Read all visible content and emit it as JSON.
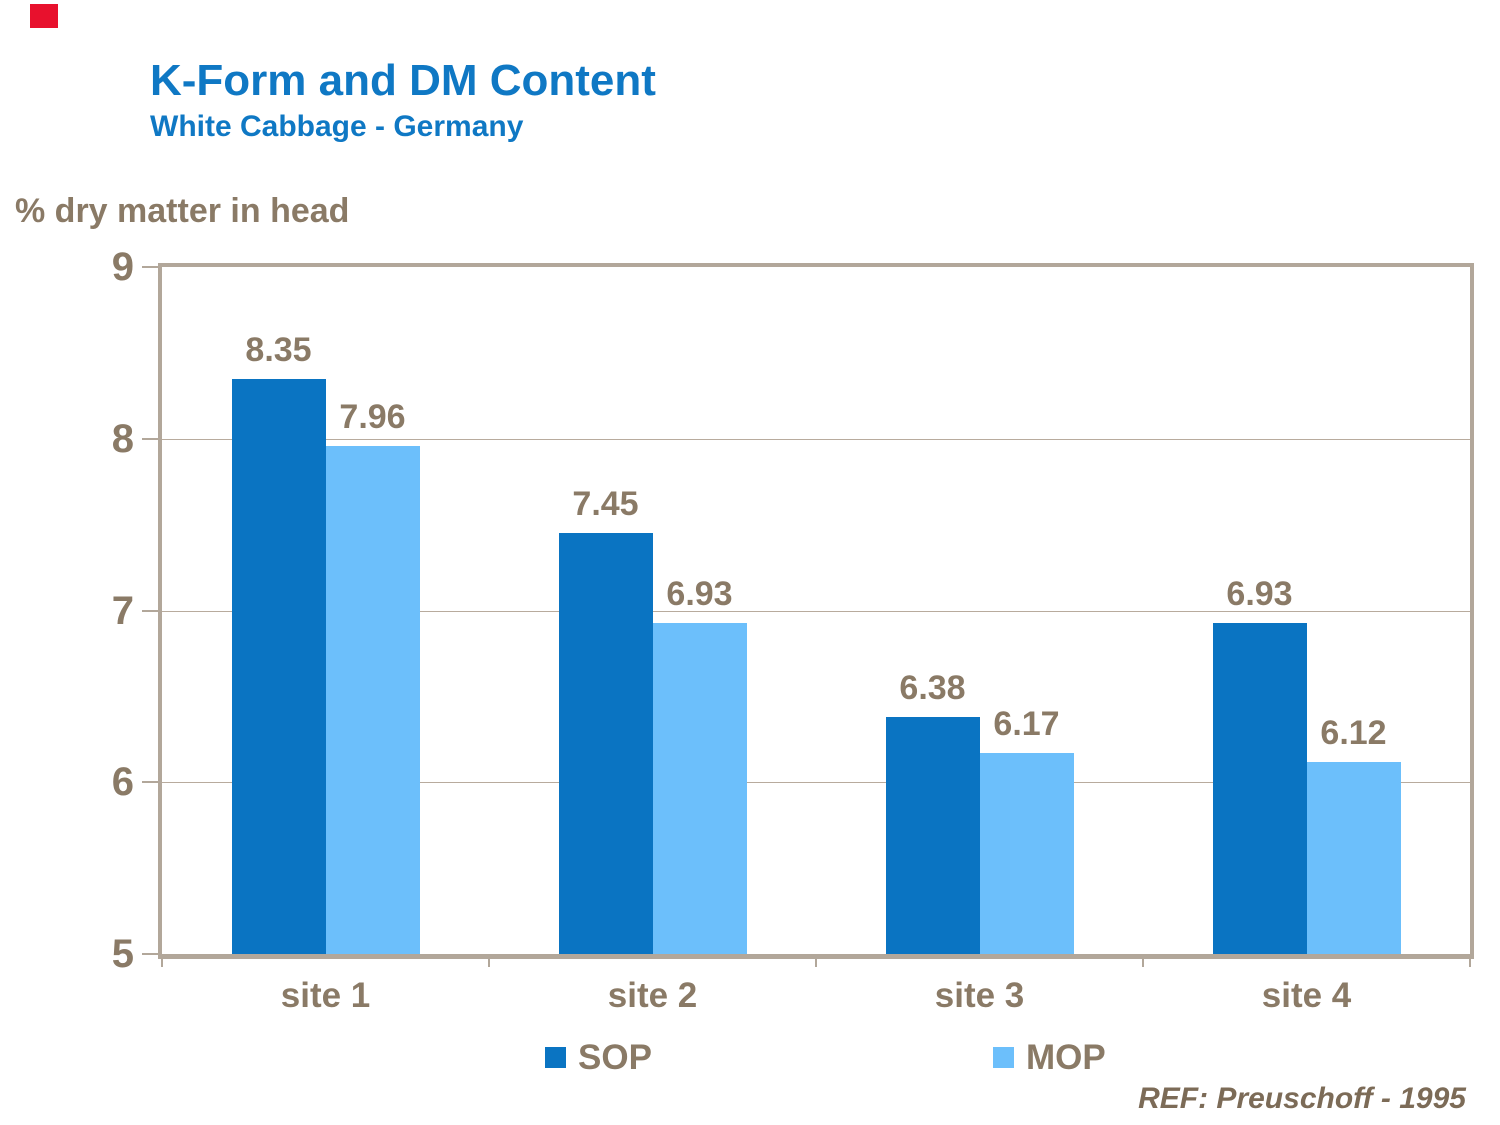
{
  "header": {
    "title": "K-Form and DM Content",
    "subtitle": "White Cabbage - Germany"
  },
  "footer": {
    "ref": "REF: Preuschoff - 1995"
  },
  "colors": {
    "title_blue": "#0f78c4",
    "sop": "#0a74c2",
    "mop": "#6cbffb",
    "text_brown": "#8a7a66",
    "grid": "#b8ab9d",
    "frame": "#b2a79a",
    "ref_brown": "#7c6b57",
    "red_mark": "#e8112d"
  },
  "chart_data": {
    "type": "bar",
    "title": "K-Form and DM Content",
    "subtitle": "White Cabbage - Germany",
    "ylabel": "% dry matter in head",
    "xlabel": "",
    "categories": [
      "site 1",
      "site 2",
      "site 3",
      "site 4"
    ],
    "series": [
      {
        "name": "SOP",
        "color_key": "sop",
        "values": [
          8.35,
          7.45,
          6.38,
          6.93
        ]
      },
      {
        "name": "MOP",
        "color_key": "mop",
        "values": [
          7.96,
          6.93,
          6.17,
          6.12
        ]
      }
    ],
    "ylim": [
      5,
      9
    ],
    "yticks": [
      5,
      6,
      7,
      8,
      9
    ],
    "grid_values": [
      6,
      7,
      8
    ],
    "grid": true,
    "data_labels": true,
    "legend_position": "bottom"
  }
}
